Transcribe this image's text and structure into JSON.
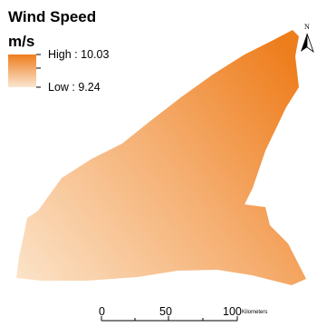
{
  "legend": {
    "title": "Wind Speed",
    "unit": "m/s",
    "high_label": "High : 10.03",
    "low_label": "Low : 9.24",
    "high_value": 10.03,
    "low_value": 9.24,
    "color_high": "#ee7d1c",
    "color_low": "#fbe6d0"
  },
  "scale_bar": {
    "labels": [
      "0",
      "50",
      "100"
    ],
    "unit": "Kilometers"
  },
  "north_arrow": {
    "label": "N",
    "icon": "north-arrow-icon"
  },
  "raster": {
    "color_high": "#ee7d1c",
    "color_mid": "#f5ae70",
    "color_low": "#fbe3c8"
  }
}
